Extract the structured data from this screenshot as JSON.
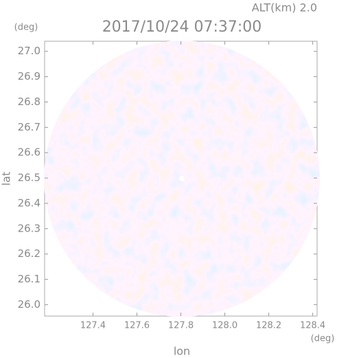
{
  "chart_data": {
    "type": "radar-ppi",
    "subtitle": "ALT(km) 2.0",
    "title": "2017/10/24 07:37:00",
    "x_label": "lon",
    "y_label": "lat",
    "x_unit": "(deg)",
    "y_unit": "(deg)",
    "xlim": [
      127.18,
      128.42
    ],
    "xticks": [
      {
        "value": 127.4,
        "label": "127.4"
      },
      {
        "value": 127.6,
        "label": "127.6"
      },
      {
        "value": 127.8,
        "label": "127.8"
      },
      {
        "value": 128.0,
        "label": "128.0"
      },
      {
        "value": 128.2,
        "label": "128.2"
      },
      {
        "value": 128.4,
        "label": "128.4"
      }
    ],
    "ylim": [
      25.955,
      27.04
    ],
    "yticks": [
      {
        "value": 26.0,
        "label": "26.0"
      },
      {
        "value": 26.1,
        "label": "26.1"
      },
      {
        "value": 26.2,
        "label": "26.2"
      },
      {
        "value": 26.3,
        "label": "26.3"
      },
      {
        "value": 26.4,
        "label": "26.4"
      },
      {
        "value": 26.5,
        "label": "26.5"
      },
      {
        "value": 26.6,
        "label": "26.6"
      },
      {
        "value": 26.7,
        "label": "26.7"
      },
      {
        "value": 26.8,
        "label": "26.8"
      },
      {
        "value": 26.9,
        "label": "26.9"
      },
      {
        "value": 27.0,
        "label": "27.0"
      }
    ]
  }
}
